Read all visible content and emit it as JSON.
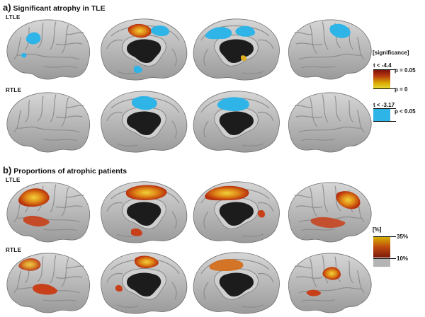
{
  "panel_a": {
    "letter": "a)",
    "title": "Significant atrophy in TLE",
    "rows": [
      {
        "label": "LTLE"
      },
      {
        "label": "RTLE"
      }
    ]
  },
  "panel_b": {
    "letter": "b)",
    "title": "Proportions of atrophic patients",
    "rows": [
      {
        "label": "LTLE"
      },
      {
        "label": "RTLE"
      }
    ]
  },
  "legend_significance": {
    "heading": "[significance]",
    "t_atrophy": "t < -4.4",
    "p_top": "p = 0.05",
    "p_bottom": "p = 0",
    "t_blue": "t < -3.17",
    "p_blue": "p < 0.05",
    "gradient_colors": [
      "#7a0c08",
      "#b63a10",
      "#d8a400",
      "#e8e03a"
    ],
    "blue_color": "#2fb4e8"
  },
  "legend_percent": {
    "heading": "[%]",
    "max_label": "35%",
    "min_label": "10%",
    "gradient_colors": [
      "#d8b800",
      "#c04a10",
      "#7a1a0a"
    ],
    "gray_color": "#b4b4b4"
  }
}
